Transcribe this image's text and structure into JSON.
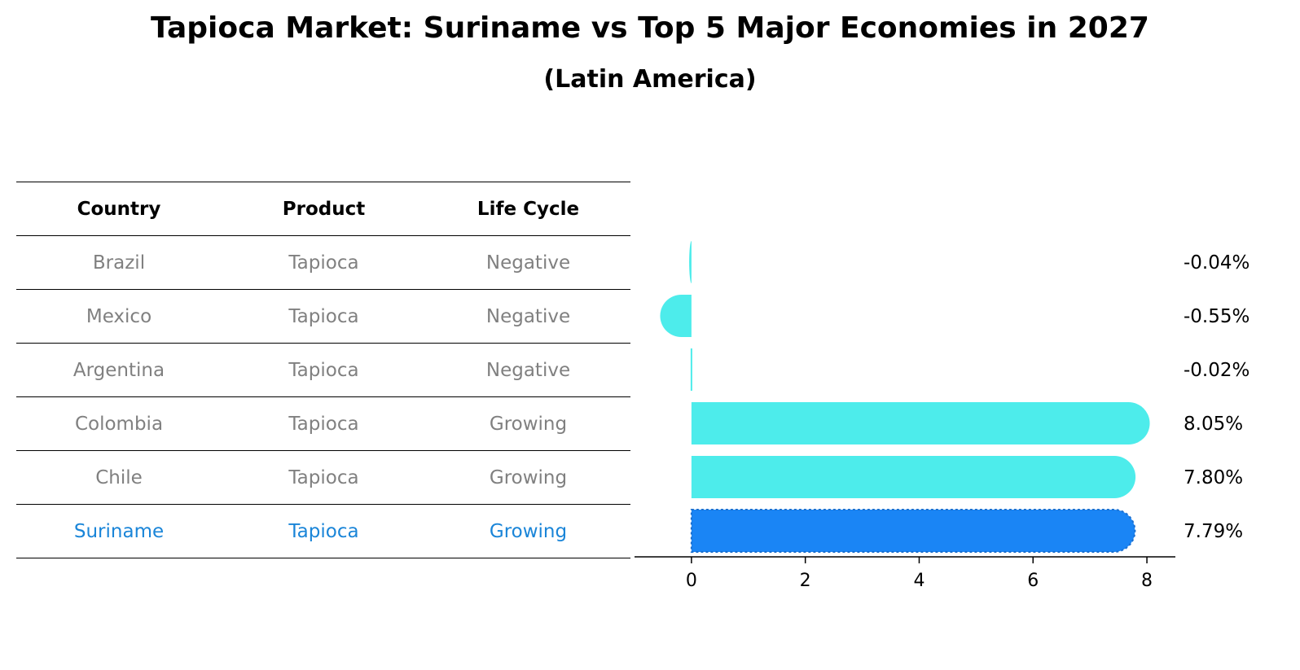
{
  "title": "Tapioca Market: Suriname vs Top 5 Major Economies in 2027",
  "subtitle": "(Latin America)",
  "table": {
    "headers": [
      "Country",
      "Product",
      "Life Cycle"
    ],
    "rows": [
      [
        "Brazil",
        "Tapioca",
        "Negative"
      ],
      [
        "Mexico",
        "Tapioca",
        "Negative"
      ],
      [
        "Argentina",
        "Tapioca",
        "Negative"
      ],
      [
        "Colombia",
        "Tapioca",
        "Growing"
      ],
      [
        "Chile",
        "Tapioca",
        "Growing"
      ],
      [
        "Suriname",
        "Tapioca",
        "Growing"
      ]
    ],
    "highlight_row": 5,
    "highlight_color": "#1a85d8",
    "text_color": "#808080"
  },
  "chart_data": {
    "type": "bar",
    "orientation": "horizontal",
    "categories": [
      "Brazil",
      "Mexico",
      "Argentina",
      "Colombia",
      "Chile",
      "Suriname"
    ],
    "values": [
      -0.04,
      -0.55,
      -0.02,
      8.05,
      7.8,
      7.79
    ],
    "value_labels": [
      "-0.04%",
      "-0.55%",
      "-0.02%",
      "8.05%",
      "7.80%",
      "7.79%"
    ],
    "colors": [
      "#4deceb",
      "#4deceb",
      "#4deceb",
      "#4deceb",
      "#4deceb",
      "#1a85f5"
    ],
    "xlim": [
      -1,
      8.5
    ],
    "xticks": [
      0,
      2,
      4,
      6,
      8
    ],
    "title": "",
    "xlabel": "",
    "ylabel": "",
    "grid": false,
    "legend": "none"
  }
}
